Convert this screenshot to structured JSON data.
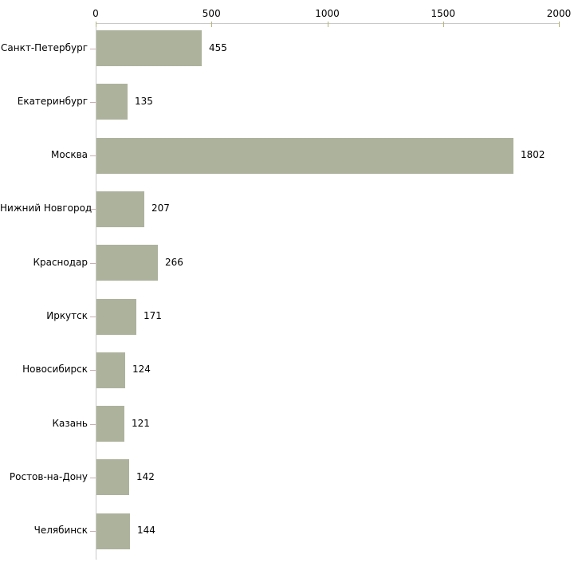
{
  "chart_data": {
    "type": "bar",
    "orientation": "horizontal",
    "title": "",
    "xlabel": "",
    "ylabel": "",
    "categories": [
      "Санкт-Петербург",
      "Екатеринбург",
      "Москва",
      "Нижний Новгород",
      "Краснодар",
      "Иркутск",
      "Новосибирск",
      "Казань",
      "Ростов-на-Дону",
      "Челябинск"
    ],
    "values": [
      455,
      135,
      1802,
      207,
      266,
      171,
      124,
      121,
      142,
      144
    ],
    "value_labels": [
      "455",
      "135",
      "1802",
      "207",
      "266",
      "171",
      "124",
      "121",
      "142",
      "144"
    ],
    "xlim": [
      0,
      2000
    ],
    "x_ticks": [
      0,
      500,
      1000,
      1500,
      2000
    ],
    "x_tick_labels": [
      "0",
      "500",
      "1000",
      "1500",
      "2000"
    ],
    "grid": false,
    "legend": null,
    "colors": {
      "bar": "#adb29c",
      "axis_line": "#c9c9c9",
      "value_tick": "#b5b578",
      "category_tick": "#c9afaf",
      "text": "#000000",
      "background": "#ffffff"
    }
  }
}
